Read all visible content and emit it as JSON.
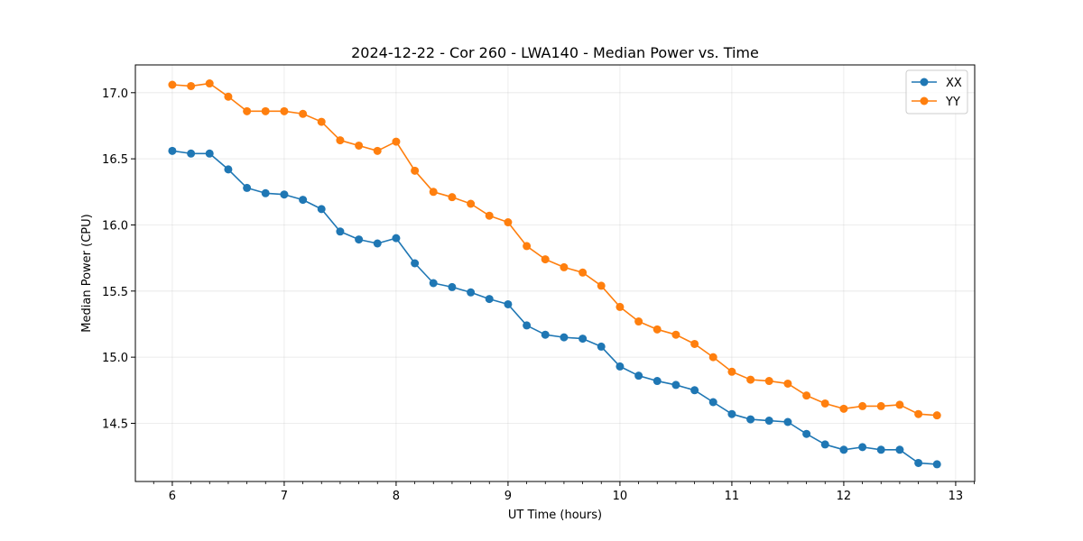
{
  "chart_data": {
    "type": "line",
    "title": "2024-12-22 - Cor 260 - LWA140 - Median Power vs. Time",
    "xlabel": "UT Time (hours)",
    "ylabel": "Median Power (CPU)",
    "xlim": [
      5.67,
      13.17
    ],
    "ylim": [
      14.06,
      17.21
    ],
    "xticks": [
      6,
      7,
      8,
      9,
      10,
      11,
      12,
      13
    ],
    "xtick_labels": [
      "6",
      "7",
      "8",
      "9",
      "10",
      "11",
      "12",
      "13"
    ],
    "yticks": [
      14.5,
      15.0,
      15.5,
      16.0,
      16.5,
      17.0
    ],
    "ytick_labels": [
      "14.5",
      "15.0",
      "15.5",
      "16.0",
      "16.5",
      "17.0"
    ],
    "grid": true,
    "legend_position": "top-right",
    "x": [
      6.0,
      6.167,
      6.333,
      6.5,
      6.667,
      6.833,
      7.0,
      7.167,
      7.333,
      7.5,
      7.667,
      7.833,
      8.0,
      8.167,
      8.333,
      8.5,
      8.667,
      8.833,
      9.0,
      9.167,
      9.333,
      9.5,
      9.667,
      9.833,
      10.0,
      10.167,
      10.333,
      10.5,
      10.667,
      10.833,
      11.0,
      11.167,
      11.333,
      11.5,
      11.667,
      11.833,
      12.0,
      12.167,
      12.333,
      12.5,
      12.667,
      12.833
    ],
    "series": [
      {
        "name": "XX",
        "color": "#1f77b4",
        "values": [
          16.56,
          16.54,
          16.54,
          16.42,
          16.28,
          16.24,
          16.23,
          16.19,
          16.12,
          15.95,
          15.89,
          15.86,
          15.9,
          15.71,
          15.56,
          15.53,
          15.49,
          15.44,
          15.4,
          15.24,
          15.17,
          15.15,
          15.14,
          15.08,
          14.93,
          14.86,
          14.82,
          14.79,
          14.75,
          14.66,
          14.57,
          14.53,
          14.52,
          14.51,
          14.42,
          14.34,
          14.3,
          14.32,
          14.3,
          14.3,
          14.2,
          14.19
        ]
      },
      {
        "name": "YY",
        "color": "#ff7f0e",
        "values": [
          17.06,
          17.05,
          17.07,
          16.97,
          16.86,
          16.86,
          16.86,
          16.84,
          16.78,
          16.64,
          16.6,
          16.56,
          16.63,
          16.41,
          16.25,
          16.21,
          16.16,
          16.07,
          16.02,
          15.84,
          15.74,
          15.68,
          15.64,
          15.54,
          15.38,
          15.27,
          15.21,
          15.17,
          15.1,
          15.0,
          14.89,
          14.83,
          14.82,
          14.8,
          14.71,
          14.65,
          14.61,
          14.63,
          14.63,
          14.64,
          14.57,
          14.56
        ]
      }
    ]
  }
}
